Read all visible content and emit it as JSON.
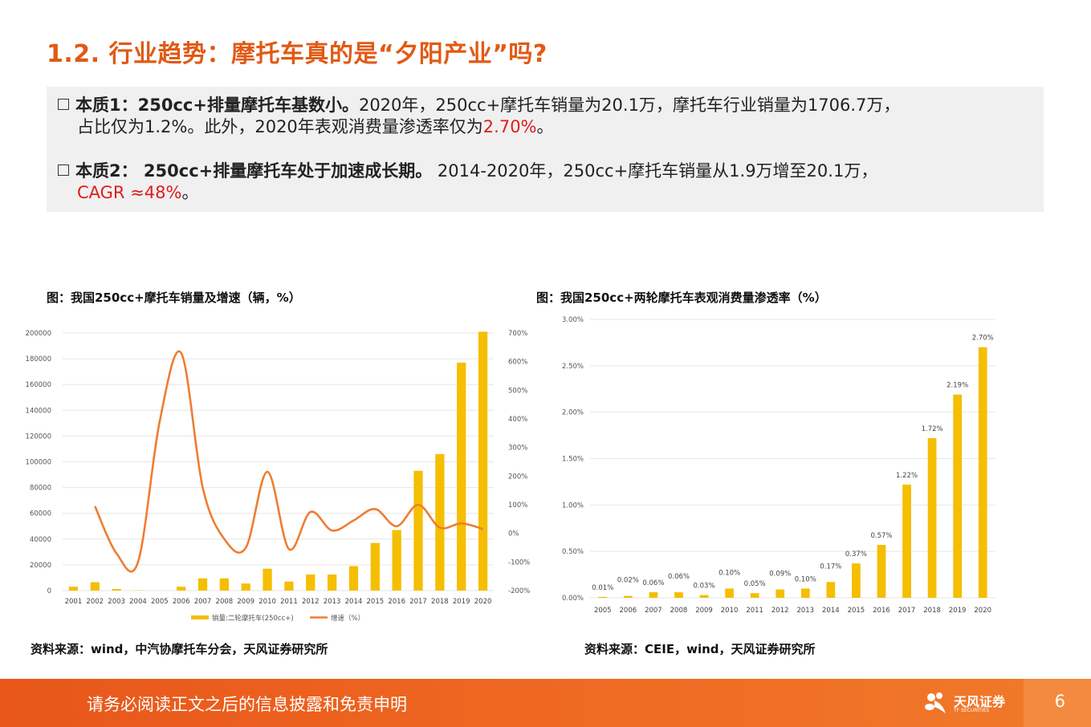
{
  "slide": {
    "title": "1.2. 行业趋势：摩托车真的是“夕阳产业”吗?",
    "bullet1": {
      "bold": "本质1：250cc+排量摩托车基数小。",
      "text1": "2020年，250cc+摩托车销量为20.1万，摩托车行业销量为1706.7万，",
      "text2": "占比仅为1.2%。此外，2020年表观消费量渗透率仅为",
      "red": "2.70%",
      "text3": "。"
    },
    "bullet2": {
      "bold": "本质2： 250cc+排量摩托车处于加速成长期。",
      "text1": " 2014-2020年，250cc+摩托车销量从1.9万增至20.1万，",
      "red": "CAGR ≈48%",
      "text2": "。"
    },
    "footer_text": "请务必阅读正文之后的信息披露和免责申明",
    "logo_text": "天风证券",
    "logo_sub": "TF SECURITIES",
    "page_number": "6"
  },
  "colors": {
    "bar": "#f5be00",
    "line": "#ee7d31",
    "accent": "#e05a14",
    "grid": "#e6e6e6"
  },
  "chart_data": [
    {
      "type": "bar",
      "title": "图：我国250cc+摩托车销量及增速（辆，%）",
      "source": "资料来源：wind，中汽协摩托车分会，天风证券研究所",
      "categories": [
        "2001",
        "2002",
        "2003",
        "2004",
        "2005",
        "2006",
        "2007",
        "2008",
        "2009",
        "2010",
        "2011",
        "2012",
        "2013",
        "2014",
        "2015",
        "2016",
        "2017",
        "2018",
        "2019",
        "2020"
      ],
      "ylim": [
        0,
        200000
      ],
      "yticks": [
        "0",
        "20000",
        "40000",
        "60000",
        "80000",
        "100000",
        "120000",
        "140000",
        "160000",
        "180000",
        "200000"
      ],
      "y2lim": [
        -200,
        700
      ],
      "y2ticks": [
        "-200%",
        "-100%",
        "0%",
        "100%",
        "200%",
        "300%",
        "400%",
        "500%",
        "600%",
        "700%"
      ],
      "series": [
        {
          "name": "销量:二轮摩托车(250cc+)",
          "type": "bar",
          "values": [
            3000,
            6500,
            1200,
            200,
            100,
            3000,
            9500,
            9500,
            5500,
            17000,
            7000,
            12500,
            12500,
            19000,
            37000,
            47000,
            93000,
            106000,
            177000,
            201000
          ]
        },
        {
          "name": "增速（%）",
          "type": "line",
          "values": [
            null,
            95,
            -70,
            -100,
            390,
            630,
            160,
            -20,
            -50,
            215,
            -55,
            75,
            10,
            45,
            85,
            25,
            100,
            20,
            35,
            15
          ]
        }
      ],
      "legend_position": "bottom"
    },
    {
      "type": "bar",
      "title": "图：我国250cc+两轮摩托车表观消费量渗透率（%）",
      "source": "资料来源：CEIE，wind，天风证券研究所",
      "categories": [
        "2005",
        "2006",
        "2007",
        "2008",
        "2009",
        "2010",
        "2011",
        "2012",
        "2013",
        "2014",
        "2015",
        "2016",
        "2017",
        "2018",
        "2019",
        "2020"
      ],
      "ylim": [
        0,
        3.0
      ],
      "yticks": [
        "0.00%",
        "0.50%",
        "1.00%",
        "1.50%",
        "2.00%",
        "2.50%",
        "3.00%"
      ],
      "values": [
        0.01,
        0.02,
        0.06,
        0.06,
        0.03,
        0.1,
        0.05,
        0.09,
        0.1,
        0.17,
        0.37,
        0.57,
        1.22,
        1.72,
        2.19,
        2.7
      ],
      "labels": [
        "0.01%",
        "0.02%",
        "0.06%",
        "0.06%",
        "0.03%",
        "0.10%",
        "0.05%",
        "0.09%",
        "0.10%",
        "0.17%",
        "0.37%",
        "0.57%",
        "1.22%",
        "1.72%",
        "2.19%",
        "2.70%"
      ]
    }
  ]
}
